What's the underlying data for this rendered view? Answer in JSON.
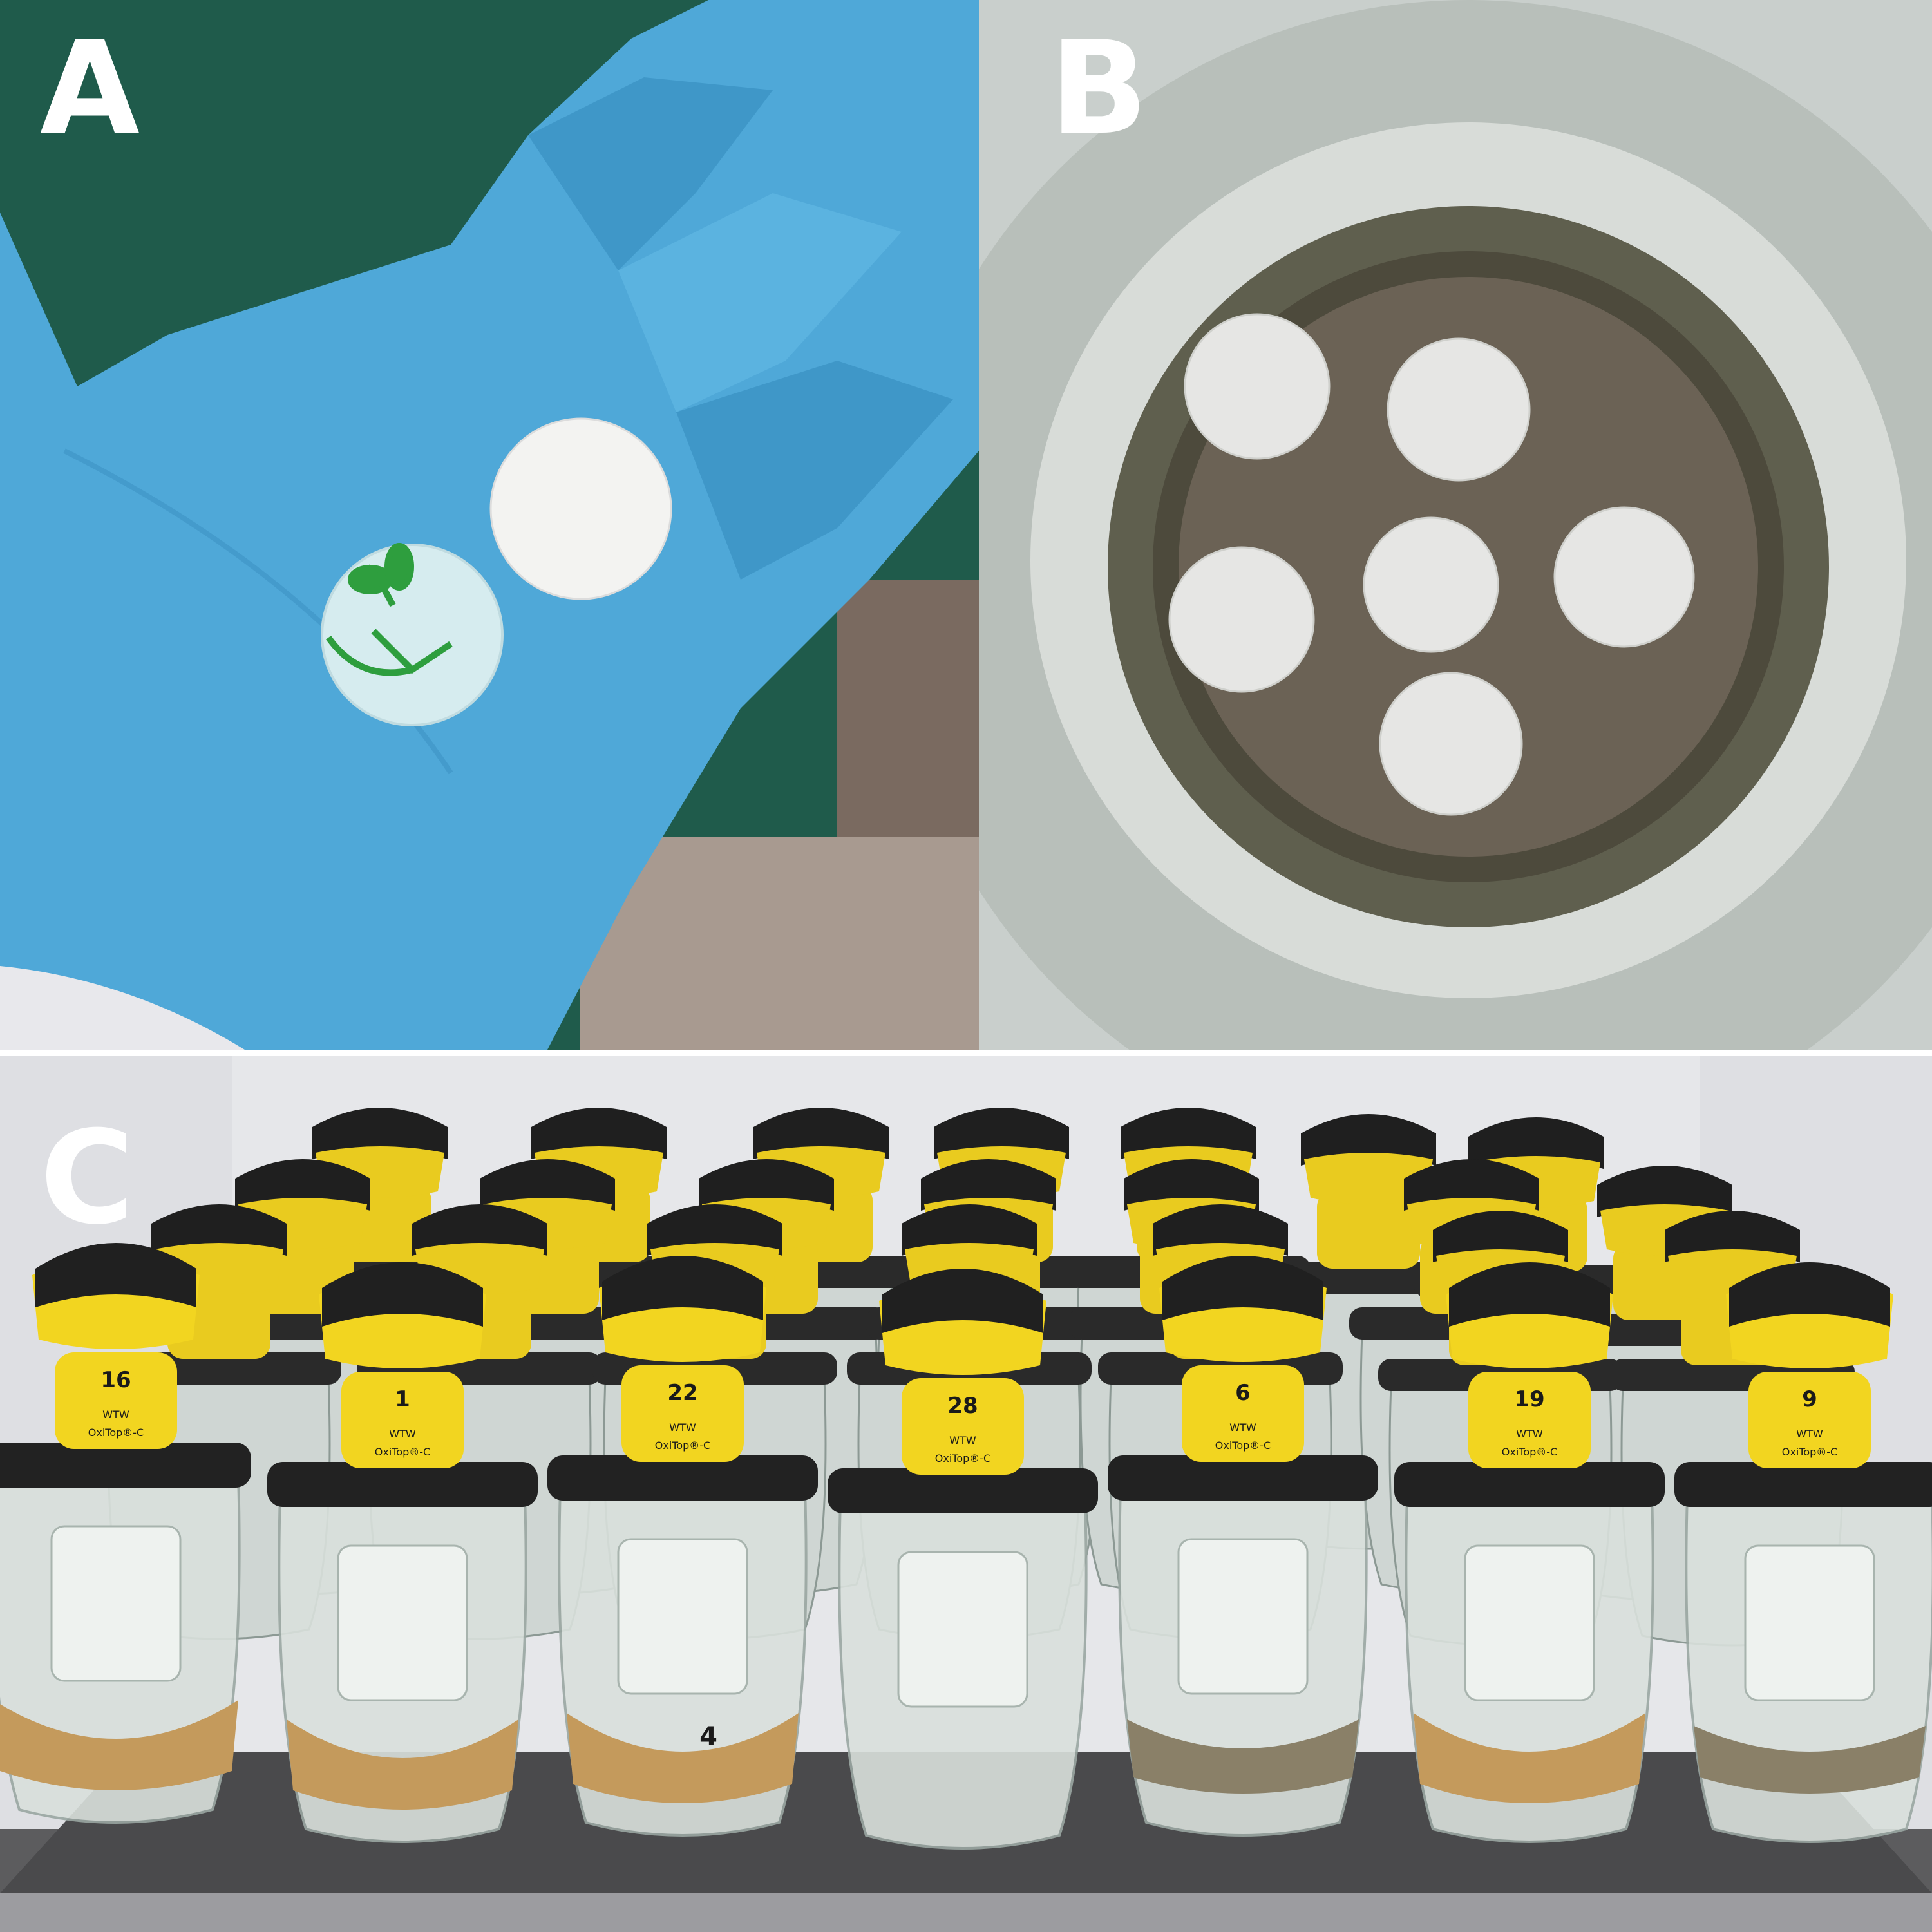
{
  "panels": {
    "a": {
      "letter": "A"
    },
    "b": {
      "letter": "B"
    },
    "c": {
      "letter": "C"
    }
  },
  "jars": {
    "front_labels": [
      "16",
      "1",
      "22",
      "28",
      "6",
      "19",
      "9"
    ],
    "brand": "WTW",
    "model": "OxiTop®-C",
    "jar_marking": "4"
  },
  "colors": {
    "glove": "#4fa8d8",
    "background_green": "#1f5b4b",
    "sand": "#6b6255",
    "oxitop_yellow": "#f2d520",
    "oxitop_black": "#202020",
    "soil_suspension": "#c49a5c"
  },
  "icons": {
    "seedling": "seedling-icon"
  }
}
